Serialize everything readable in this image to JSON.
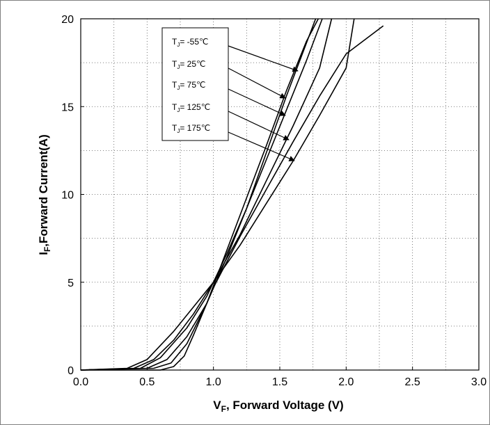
{
  "chart_data": {
    "type": "line",
    "title": "",
    "xlabel": {
      "main": "V",
      "sub": "F",
      "rest": ", Forward Voltage (V)"
    },
    "ylabel": {
      "main": "I",
      "sub": "F",
      "rest": ",Forward Current(A)"
    },
    "xlim": [
      0.0,
      3.0
    ],
    "ylim": [
      0,
      20
    ],
    "x_ticks": [
      "0.0",
      "0.5",
      "1.0",
      "1.5",
      "2.0",
      "2.5",
      "3.0"
    ],
    "y_ticks": [
      "0",
      "5",
      "10",
      "15",
      "20"
    ],
    "grid": "dotted",
    "legend_position": "top-center",
    "series": [
      {
        "name": "T_J = -55℃",
        "label_main": "T",
        "label_sub": "J",
        "label_rest": "= -55℃",
        "points": [
          [
            0.0,
            0.0
          ],
          [
            0.55,
            0.1
          ],
          [
            0.68,
            0.4
          ],
          [
            0.8,
            1.5
          ],
          [
            0.95,
            3.8
          ],
          [
            1.1,
            6.8
          ],
          [
            1.25,
            9.8
          ],
          [
            1.4,
            12.8
          ],
          [
            1.55,
            15.9
          ],
          [
            1.7,
            18.7
          ],
          [
            1.79,
            20.0
          ]
        ]
      },
      {
        "name": "T_J = 25℃",
        "label_main": "T",
        "label_sub": "J",
        "label_rest": "= 25℃",
        "points": [
          [
            0.0,
            0.0
          ],
          [
            0.5,
            0.1
          ],
          [
            0.65,
            0.6
          ],
          [
            0.8,
            1.9
          ],
          [
            0.95,
            3.8
          ],
          [
            1.1,
            6.4
          ],
          [
            1.25,
            9.2
          ],
          [
            1.4,
            12.4
          ],
          [
            1.55,
            15.6
          ],
          [
            1.7,
            18.6
          ],
          [
            1.77,
            20.0
          ]
        ]
      },
      {
        "name": "T_J = 75℃",
        "label_main": "T",
        "label_sub": "J",
        "label_rest": "= 75℃",
        "points": [
          [
            0.0,
            0.0
          ],
          [
            0.45,
            0.1
          ],
          [
            0.6,
            0.7
          ],
          [
            0.8,
            2.4
          ],
          [
            0.95,
            4.2
          ],
          [
            1.1,
            6.6
          ],
          [
            1.25,
            9.2
          ],
          [
            1.4,
            12.0
          ],
          [
            1.55,
            14.8
          ],
          [
            1.7,
            17.6
          ],
          [
            1.82,
            20.0
          ]
        ]
      },
      {
        "name": "T_J = 125℃",
        "label_main": "T",
        "label_sub": "J",
        "label_rest": "= 125℃",
        "points": [
          [
            0.0,
            0.0
          ],
          [
            0.4,
            0.1
          ],
          [
            0.55,
            0.6
          ],
          [
            0.7,
            1.7
          ],
          [
            0.85,
            3.2
          ],
          [
            1.0,
            5.0
          ],
          [
            1.2,
            7.7
          ],
          [
            1.4,
            10.8
          ],
          [
            1.6,
            13.9
          ],
          [
            1.8,
            17.2
          ],
          [
            1.89,
            20.0
          ]
        ]
      },
      {
        "name": "T_J = 175℃",
        "label_main": "T",
        "label_sub": "J",
        "label_rest": "= 175℃",
        "points": [
          [
            0.0,
            0.0
          ],
          [
            0.35,
            0.1
          ],
          [
            0.5,
            0.6
          ],
          [
            0.7,
            2.2
          ],
          [
            0.85,
            3.6
          ],
          [
            1.0,
            5.0
          ],
          [
            1.2,
            7.1
          ],
          [
            1.4,
            9.5
          ],
          [
            1.6,
            11.9
          ],
          [
            1.8,
            14.5
          ],
          [
            2.0,
            17.2
          ],
          [
            2.06,
            20.0
          ]
        ]
      },
      {
        "name": "",
        "points": [
          [
            0.0,
            0.0
          ],
          [
            0.6,
            0.0
          ],
          [
            0.7,
            0.2
          ],
          [
            0.78,
            0.8
          ],
          [
            0.85,
            2.0
          ],
          [
            1.0,
            4.7
          ],
          [
            1.2,
            7.6
          ],
          [
            1.4,
            10.3
          ],
          [
            1.6,
            13.0
          ],
          [
            1.8,
            15.6
          ],
          [
            2.0,
            18.0
          ],
          [
            2.28,
            19.6
          ]
        ]
      }
    ]
  }
}
